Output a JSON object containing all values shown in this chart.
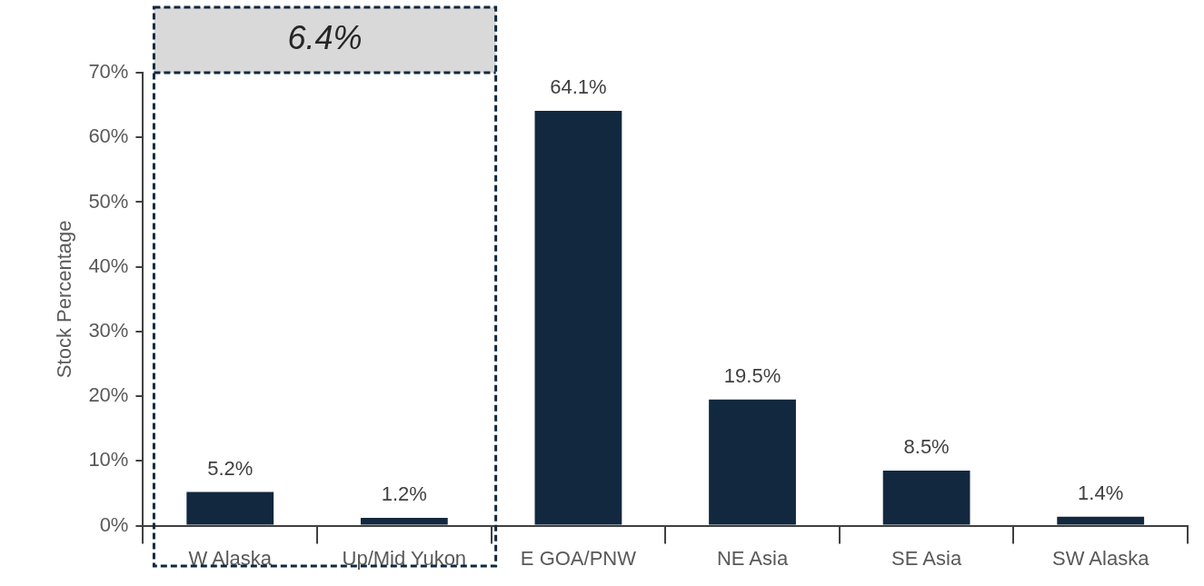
{
  "chart_data": {
    "type": "bar",
    "ylabel": "Stock Percentage",
    "categories": [
      "W Alaska",
      "Up/Mid Yukon",
      "E GOA/PNW",
      "NE Asia",
      "SE Asia",
      "SW Alaska"
    ],
    "values": [
      5.2,
      1.2,
      64.1,
      19.5,
      8.5,
      1.4
    ],
    "value_labels": [
      "5.2%",
      "1.2%",
      "64.1%",
      "19.5%",
      "8.5%",
      "1.4%"
    ],
    "color": "#12283f",
    "ylim": [
      0,
      70
    ],
    "yticks": [
      {
        "value": 0,
        "label": "0%"
      },
      {
        "value": 10,
        "label": "10%"
      },
      {
        "value": 20,
        "label": "20%"
      },
      {
        "value": 30,
        "label": "30%"
      },
      {
        "value": 40,
        "label": "40%"
      },
      {
        "value": 50,
        "label": "50%"
      },
      {
        "value": 60,
        "label": "60%"
      },
      {
        "value": 70,
        "label": "70%"
      }
    ],
    "annotations": [
      "6.4%"
    ],
    "grid": false,
    "legend": false
  }
}
